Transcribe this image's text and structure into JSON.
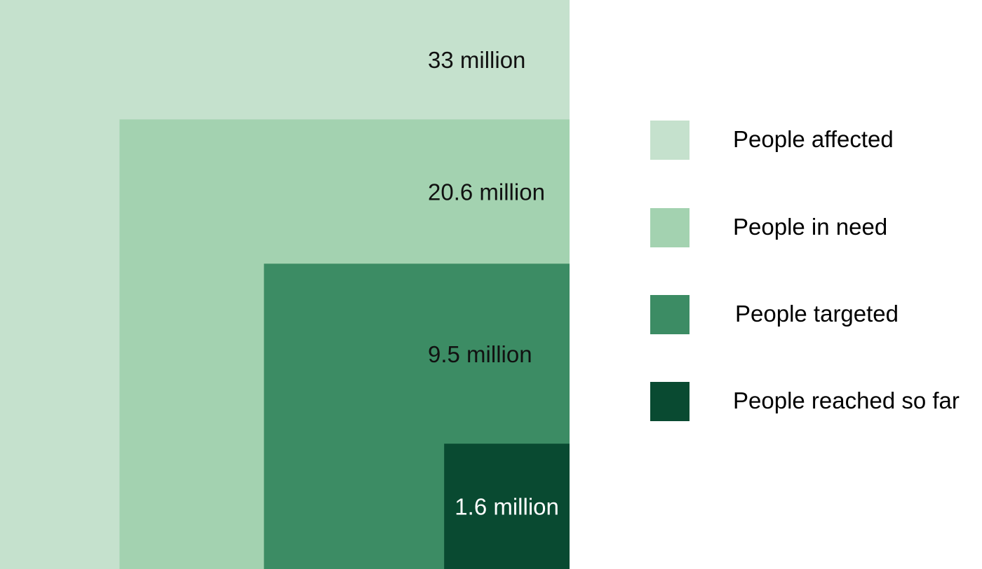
{
  "chart_data": {
    "type": "nested-squares",
    "title": "",
    "unit": "million",
    "series": [
      {
        "name": "People affected",
        "value": 33,
        "label": "33 million",
        "color": "#c5e1cd",
        "label_color": "#111111"
      },
      {
        "name": "People in need",
        "value": 20.6,
        "label": "20.6 million",
        "color": "#a3d2b0",
        "label_color": "#111111"
      },
      {
        "name": "People targeted",
        "value": 9.5,
        "label": "9.5 million",
        "color": "#3c8c64",
        "label_color": "#111111"
      },
      {
        "name": "People reached so far",
        "value": 1.6,
        "label": "1.6 million",
        "color": "#094a31",
        "label_color": "#ffffff"
      }
    ],
    "legend_position": "right"
  }
}
